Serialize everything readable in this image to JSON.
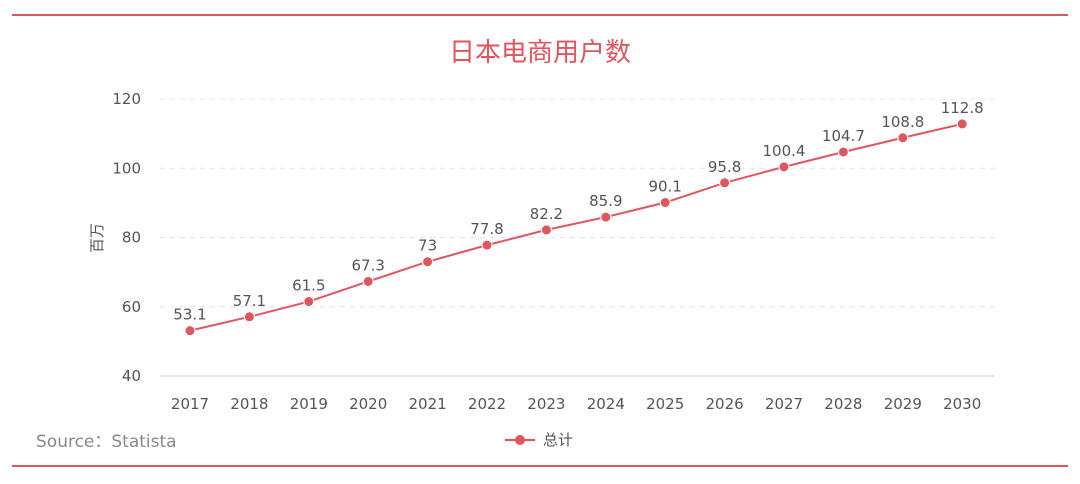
{
  "chart_data": {
    "type": "line",
    "title": "日本电商用户数",
    "ylabel": "百万",
    "xlabel": "",
    "categories": [
      "2017",
      "2018",
      "2019",
      "2020",
      "2021",
      "2022",
      "2023",
      "2024",
      "2025",
      "2026",
      "2027",
      "2028",
      "2029",
      "2030"
    ],
    "series": [
      {
        "name": "总计",
        "values": [
          53.1,
          57.1,
          61.5,
          67.3,
          73,
          77.8,
          82.2,
          85.9,
          90.1,
          95.8,
          100.4,
          104.7,
          108.8,
          112.8
        ],
        "labels": [
          "53.1",
          "57.1",
          "61.5",
          "67.3",
          "73",
          "77.8",
          "82.2",
          "85.9",
          "90.1",
          "95.8",
          "100.4",
          "104.7",
          "108.8",
          "112.8"
        ]
      }
    ],
    "ylim": [
      40,
      120
    ],
    "yticks": [
      40,
      60,
      80,
      100,
      120
    ],
    "grid": true,
    "legend_position": "bottom-center"
  },
  "source": "Source：Statista",
  "colors": {
    "accent": "#e0565e",
    "text": "#555555",
    "grid": "#e4e4e4"
  }
}
